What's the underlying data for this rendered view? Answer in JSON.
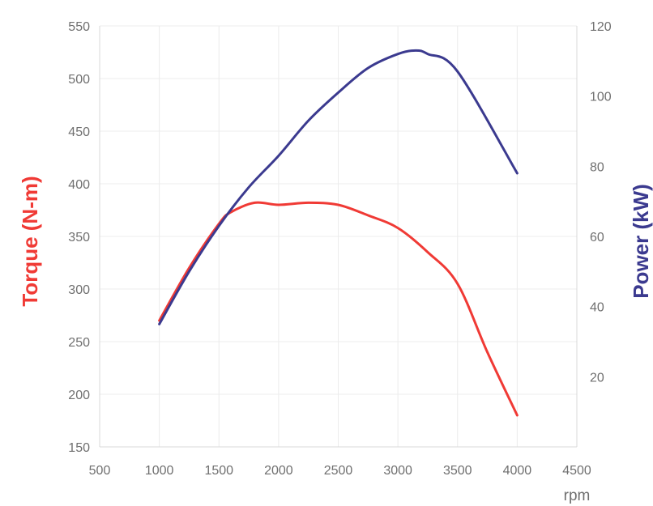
{
  "chart_data": {
    "type": "line",
    "title": "",
    "xlabel": "rpm",
    "ylabel_left": "Torque (N-m)",
    "ylabel_right": "Power (kW)",
    "xlim": [
      500,
      4500
    ],
    "ylim_left": [
      150,
      550
    ],
    "ylim_right": [
      0,
      120
    ],
    "x_ticks": [
      "500",
      "1000",
      "1500",
      "2000",
      "2500",
      "3000",
      "3500",
      "4000",
      "4500"
    ],
    "y_left_ticks": [
      "150",
      "200",
      "250",
      "300",
      "350",
      "400",
      "450",
      "500",
      "550"
    ],
    "y_right_ticks": [
      "20",
      "40",
      "60",
      "80",
      "100",
      "120"
    ],
    "grid": true,
    "series": [
      {
        "name": "Torque (N-m)",
        "axis": "left",
        "color": "#f03a35",
        "x": [
          1000,
          1250,
          1500,
          1600,
          1800,
          2000,
          2250,
          2500,
          2750,
          3000,
          3250,
          3500,
          3750,
          4000
        ],
        "y": [
          270,
          320,
          362,
          373,
          382,
          380,
          382,
          380,
          370,
          358,
          335,
          305,
          240,
          180
        ]
      },
      {
        "name": "Power (kW)",
        "axis": "right",
        "color": "#3b3a8f",
        "x": [
          1000,
          1250,
          1500,
          1750,
          2000,
          2250,
          2500,
          2750,
          3000,
          3150,
          3250,
          3500,
          4000
        ],
        "y": [
          35,
          50,
          63,
          74,
          83,
          93,
          101,
          108,
          112,
          113,
          112,
          107,
          78
        ]
      }
    ]
  }
}
